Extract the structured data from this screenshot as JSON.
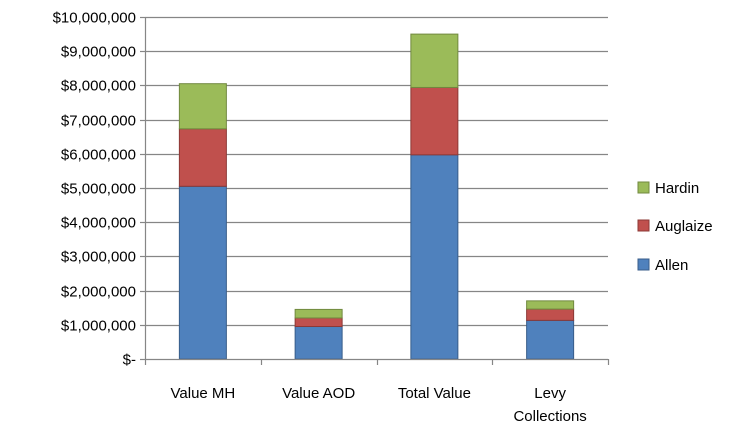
{
  "chart_data": {
    "type": "bar",
    "stacked": true,
    "title": "",
    "xlabel": "",
    "ylabel": "",
    "categories": [
      [
        "Value MH"
      ],
      [
        "Value AOD"
      ],
      [
        "Total Value"
      ],
      [
        "Levy",
        "Collections"
      ]
    ],
    "series": [
      {
        "name": "Allen",
        "color": "#4F81BD",
        "border": "#385D8A",
        "values": [
          5050000,
          950000,
          5970000,
          1130000
        ]
      },
      {
        "name": "Auglaize",
        "color": "#C0504D",
        "border": "#8C3836",
        "values": [
          1680000,
          250000,
          1970000,
          330000
        ]
      },
      {
        "name": "Hardin",
        "color": "#9BBB59",
        "border": "#71893F",
        "values": [
          1320000,
          250000,
          1560000,
          240000
        ]
      }
    ],
    "ylim": [
      0,
      10000000
    ],
    "y_ticks": [
      {
        "value": 0,
        "label": "$-"
      },
      {
        "value": 1000000,
        "label": "$1,000,000"
      },
      {
        "value": 2000000,
        "label": "$2,000,000"
      },
      {
        "value": 3000000,
        "label": "$3,000,000"
      },
      {
        "value": 4000000,
        "label": "$4,000,000"
      },
      {
        "value": 5000000,
        "label": "$5,000,000"
      },
      {
        "value": 6000000,
        "label": "$6,000,000"
      },
      {
        "value": 7000000,
        "label": "$7,000,000"
      },
      {
        "value": 8000000,
        "label": "$8,000,000"
      },
      {
        "value": 9000000,
        "label": "$9,000,000"
      },
      {
        "value": 10000000,
        "label": "$10,000,000"
      }
    ],
    "grid": true,
    "gridline_color": "#868686",
    "legend_position": "right",
    "legend_order": [
      "Hardin",
      "Auglaize",
      "Allen"
    ]
  }
}
